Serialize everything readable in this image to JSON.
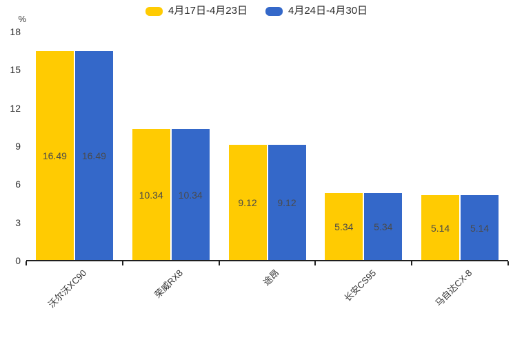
{
  "chart_data": {
    "type": "bar",
    "title": "",
    "categories": [
      "沃尔沃XC90",
      "荣威RX8",
      "途昂",
      "长安CS95",
      "马自达CX-8"
    ],
    "series": [
      {
        "name": "4月17日-4月23日",
        "color": "#FFCB02",
        "values": [
          16.49,
          10.34,
          9.12,
          5.34,
          5.14
        ]
      },
      {
        "name": "4月24日-4月30日",
        "color": "#3468C9",
        "values": [
          16.49,
          10.34,
          9.12,
          5.34,
          5.14
        ]
      }
    ],
    "xlabel": "",
    "ylabel": "%",
    "ylim": [
      0,
      18
    ],
    "yticks": [
      0,
      3,
      6,
      9,
      12,
      15,
      18
    ],
    "grid": false,
    "legend_position": "top",
    "value_labels": "inside-center",
    "value_label_decimals": 2,
    "category_label_rotation_deg": -45
  }
}
